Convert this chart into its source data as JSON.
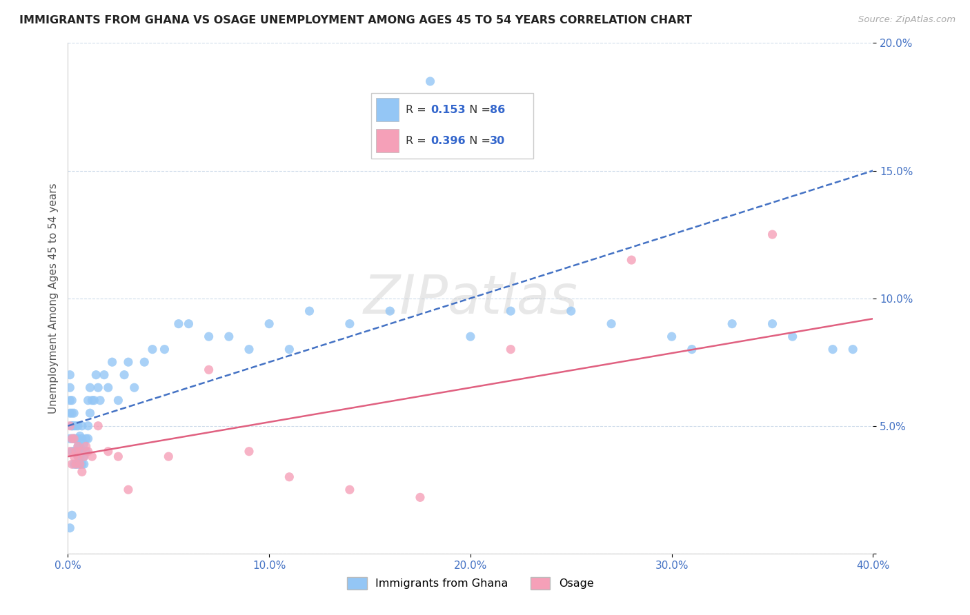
{
  "title": "IMMIGRANTS FROM GHANA VS OSAGE UNEMPLOYMENT AMONG AGES 45 TO 54 YEARS CORRELATION CHART",
  "source": "Source: ZipAtlas.com",
  "ylabel": "Unemployment Among Ages 45 to 54 years",
  "xlim": [
    0.0,
    0.4
  ],
  "ylim": [
    0.0,
    0.2
  ],
  "xticks": [
    0.0,
    0.1,
    0.2,
    0.3,
    0.4
  ],
  "xtick_labels": [
    "0.0%",
    "10.0%",
    "20.0%",
    "30.0%",
    "40.0%"
  ],
  "yticks": [
    0.0,
    0.05,
    0.1,
    0.15,
    0.2
  ],
  "ytick_labels": [
    "",
    "5.0%",
    "10.0%",
    "15.0%",
    "20.0%"
  ],
  "ghana_color": "#94c6f5",
  "osage_color": "#f5a0b8",
  "ghana_R": 0.153,
  "ghana_N": 86,
  "osage_R": 0.396,
  "osage_N": 30,
  "trend_blue_color": "#4472c4",
  "trend_pink_color": "#e06080",
  "watermark": "ZIPatlas",
  "legend_label_R": "R = ",
  "legend_label_N": "N = ",
  "legend_bottom_ghana": "Immigrants from Ghana",
  "legend_bottom_osage": "Osage",
  "tick_color": "#4472c4",
  "ylabel_color": "#555555",
  "ghana_x": [
    0.001,
    0.001,
    0.001,
    0.001,
    0.001,
    0.002,
    0.002,
    0.002,
    0.002,
    0.002,
    0.002,
    0.003,
    0.003,
    0.003,
    0.003,
    0.003,
    0.003,
    0.004,
    0.004,
    0.004,
    0.004,
    0.004,
    0.005,
    0.005,
    0.005,
    0.005,
    0.005,
    0.005,
    0.006,
    0.006,
    0.006,
    0.006,
    0.006,
    0.007,
    0.007,
    0.007,
    0.007,
    0.008,
    0.008,
    0.008,
    0.009,
    0.009,
    0.01,
    0.01,
    0.01,
    0.011,
    0.011,
    0.012,
    0.013,
    0.014,
    0.015,
    0.016,
    0.018,
    0.02,
    0.022,
    0.025,
    0.028,
    0.03,
    0.033,
    0.038,
    0.042,
    0.048,
    0.055,
    0.06,
    0.07,
    0.08,
    0.09,
    0.1,
    0.11,
    0.12,
    0.14,
    0.16,
    0.18,
    0.2,
    0.22,
    0.25,
    0.27,
    0.3,
    0.31,
    0.33,
    0.35,
    0.36,
    0.38,
    0.39,
    0.001,
    0.002
  ],
  "ghana_y": [
    0.055,
    0.06,
    0.065,
    0.07,
    0.045,
    0.05,
    0.055,
    0.06,
    0.045,
    0.05,
    0.04,
    0.045,
    0.05,
    0.055,
    0.04,
    0.045,
    0.035,
    0.04,
    0.045,
    0.05,
    0.035,
    0.04,
    0.04,
    0.045,
    0.05,
    0.035,
    0.038,
    0.042,
    0.038,
    0.042,
    0.046,
    0.035,
    0.04,
    0.04,
    0.045,
    0.05,
    0.035,
    0.038,
    0.043,
    0.035,
    0.04,
    0.045,
    0.045,
    0.05,
    0.06,
    0.055,
    0.065,
    0.06,
    0.06,
    0.07,
    0.065,
    0.06,
    0.07,
    0.065,
    0.075,
    0.06,
    0.07,
    0.075,
    0.065,
    0.075,
    0.08,
    0.08,
    0.09,
    0.09,
    0.085,
    0.085,
    0.08,
    0.09,
    0.08,
    0.095,
    0.09,
    0.095,
    0.185,
    0.085,
    0.095,
    0.095,
    0.09,
    0.085,
    0.08,
    0.09,
    0.09,
    0.085,
    0.08,
    0.08,
    0.01,
    0.015
  ],
  "osage_x": [
    0.001,
    0.001,
    0.002,
    0.002,
    0.003,
    0.003,
    0.004,
    0.004,
    0.005,
    0.005,
    0.006,
    0.006,
    0.007,
    0.008,
    0.009,
    0.01,
    0.012,
    0.015,
    0.02,
    0.025,
    0.03,
    0.05,
    0.07,
    0.09,
    0.11,
    0.14,
    0.175,
    0.22,
    0.28,
    0.35
  ],
  "osage_y": [
    0.05,
    0.04,
    0.045,
    0.035,
    0.045,
    0.038,
    0.04,
    0.035,
    0.042,
    0.038,
    0.035,
    0.04,
    0.032,
    0.038,
    0.042,
    0.04,
    0.038,
    0.05,
    0.04,
    0.038,
    0.025,
    0.038,
    0.072,
    0.04,
    0.03,
    0.025,
    0.022,
    0.08,
    0.115,
    0.125
  ],
  "ghana_trend_x0": 0.0,
  "ghana_trend_y0": 0.05,
  "ghana_trend_x1": 0.4,
  "ghana_trend_y1": 0.15,
  "osage_trend_x0": 0.0,
  "osage_trend_y0": 0.038,
  "osage_trend_x1": 0.4,
  "osage_trend_y1": 0.092
}
